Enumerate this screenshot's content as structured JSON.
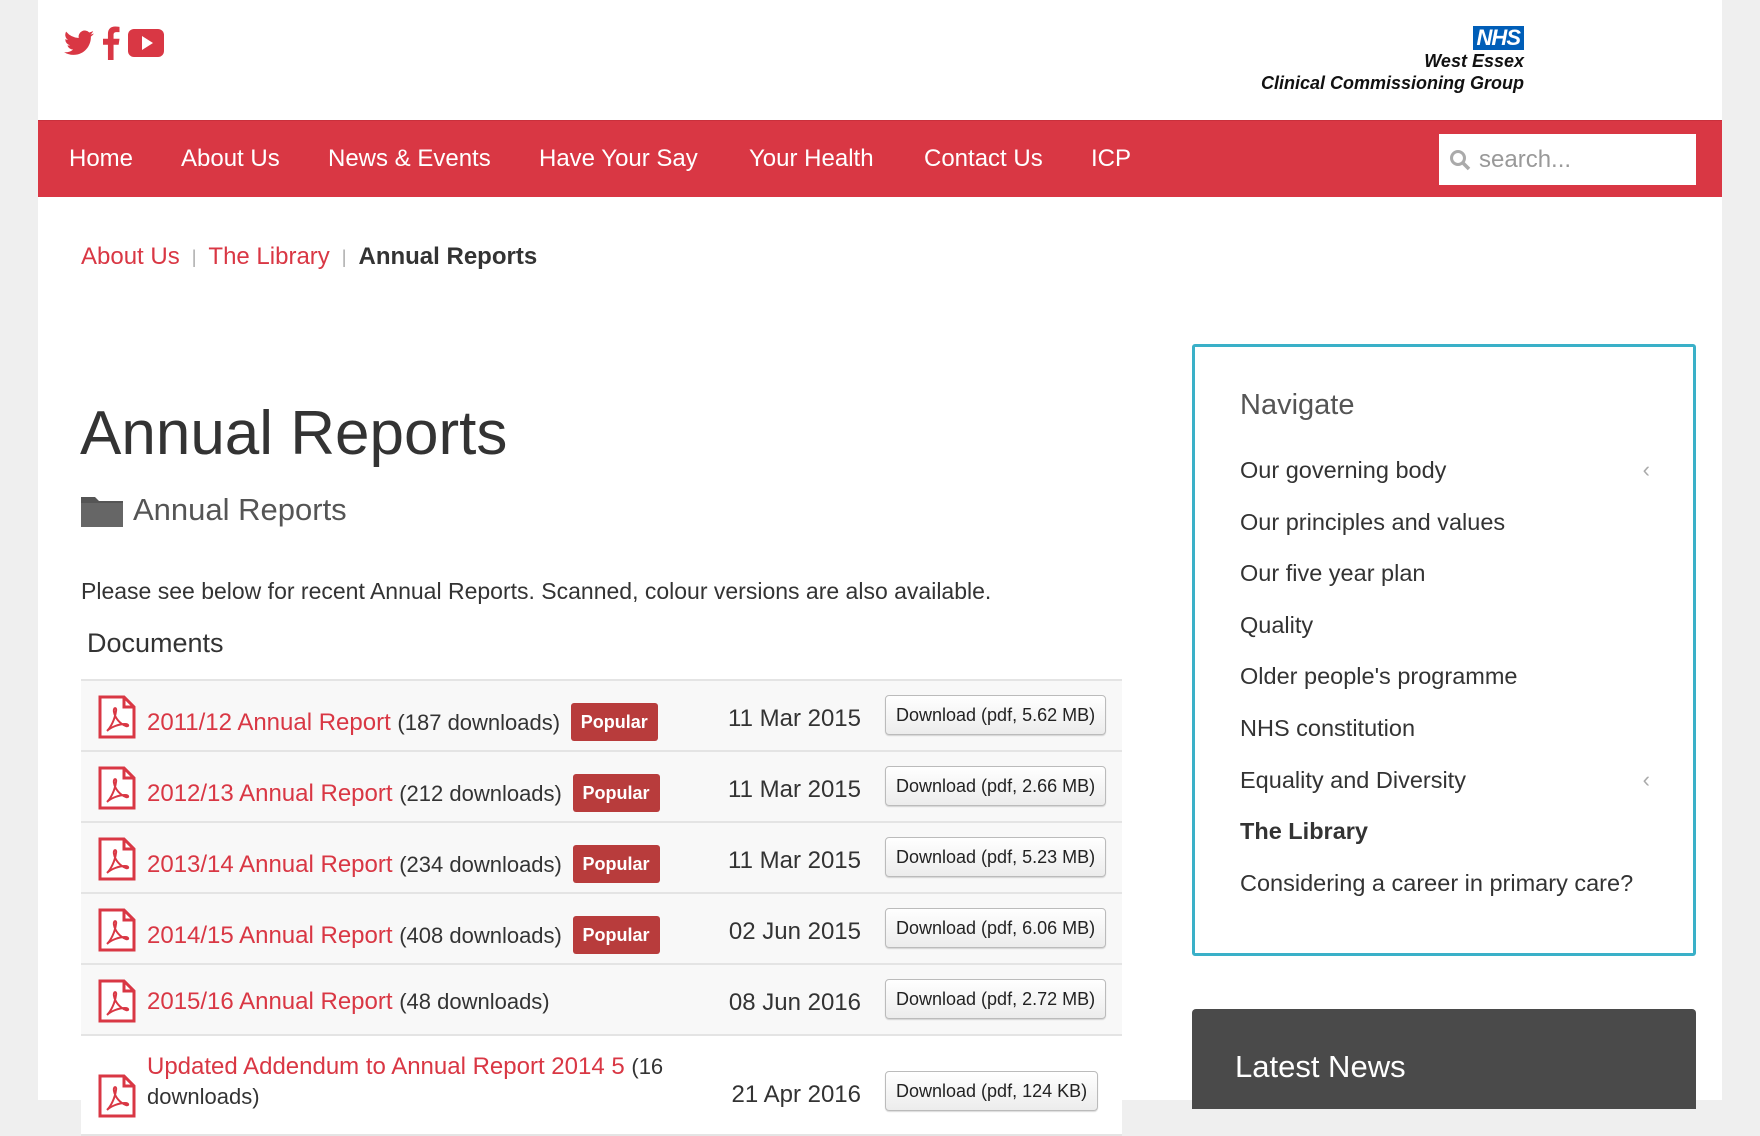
{
  "header": {
    "social": [
      "twitter-icon",
      "facebook-icon",
      "youtube-icon"
    ],
    "logo": {
      "badge": "NHS",
      "line1": "West Essex",
      "line2": "Clinical Commissioning Group"
    }
  },
  "nav": {
    "items": [
      "Home",
      "About Us",
      "News & Events",
      "Have Your Say",
      "Your Health",
      "Contact Us",
      "ICP"
    ],
    "search_placeholder": "search..."
  },
  "breadcrumb": {
    "items": [
      "About Us",
      "The Library"
    ],
    "current": "Annual Reports"
  },
  "main": {
    "title": "Annual Reports",
    "category": "Annual Reports",
    "intro": "Please see below for recent Annual Reports. Scanned, colour versions are also available.",
    "documents_heading": "Documents",
    "documents": [
      {
        "title": "2011/12 Annual Report",
        "count": "(187 downloads)",
        "badge": "Popular",
        "date": "11 Mar 2015",
        "download": "Download (pdf, 5.62 MB)"
      },
      {
        "title": "2012/13 Annual Report",
        "count": "(212 downloads)",
        "badge": "Popular",
        "date": "11 Mar 2015",
        "download": "Download (pdf, 2.66 MB)"
      },
      {
        "title": "2013/14 Annual Report",
        "count": "(234 downloads)",
        "badge": "Popular",
        "date": "11 Mar 2015",
        "download": "Download (pdf, 5.23 MB)"
      },
      {
        "title": "2014/15 Annual Report",
        "count": "(408 downloads)",
        "badge": "Popular",
        "date": "02 Jun 2015",
        "download": "Download (pdf, 6.06 MB)"
      },
      {
        "title": "2015/16 Annual Report",
        "count": "(48 downloads)",
        "date": "08 Jun 2016",
        "download": "Download (pdf, 2.72 MB)"
      },
      {
        "title": "Updated Addendum to Annual Report 2014 5",
        "count": "(16 downloads)",
        "date": "21 Apr 2016",
        "download": "Download (pdf, 124 KB)"
      }
    ]
  },
  "sidebar": {
    "heading": "Navigate",
    "items": [
      "Our governing body",
      "Our principles and values",
      "Our five year plan",
      "Quality",
      "Older people's programme",
      "NHS constitution",
      "Equality and Diversity",
      "The Library",
      "Considering a career in primary care?"
    ],
    "active": "The Library"
  },
  "latest_news": {
    "heading": "Latest News"
  },
  "colors": {
    "brand_red": "#d93744",
    "badge": "#b83c3c",
    "sidebar_border": "#3ab0c8",
    "nhs_blue": "#005eb8"
  }
}
